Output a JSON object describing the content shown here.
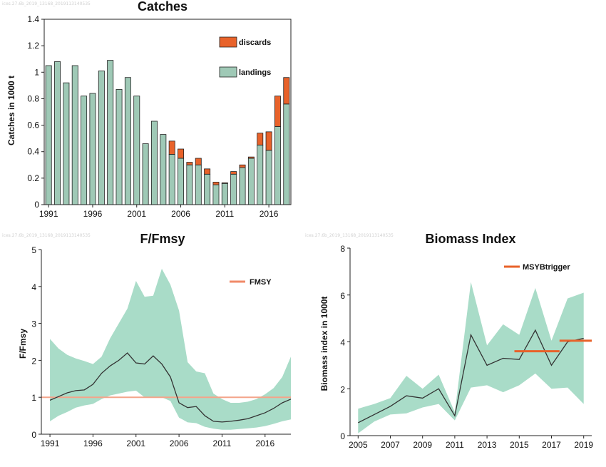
{
  "chart_data": [
    {
      "id": "catches",
      "type": "bar",
      "title": "Catches",
      "watermark": "ices.27.6b_2019_13168_2019113140535",
      "ylabel": "Catches in 1000 t",
      "xlabel": "",
      "ylim": [
        0,
        1.4
      ],
      "yticks": [
        "0",
        "0.2",
        "0.4",
        "0.6",
        "0.8",
        "1",
        "1.2",
        "1.4"
      ],
      "xtick_labels": [
        "1991",
        "1996",
        "2001",
        "2006",
        "2011",
        "2016"
      ],
      "categories": [
        1991,
        1992,
        1993,
        1994,
        1995,
        1996,
        1997,
        1998,
        1999,
        2000,
        2001,
        2002,
        2003,
        2004,
        2005,
        2006,
        2007,
        2008,
        2009,
        2010,
        2011,
        2012,
        2013,
        2014,
        2015,
        2016,
        2017,
        2018
      ],
      "series": [
        {
          "name": "landings",
          "color": "#9fc9b6",
          "values": [
            1.05,
            1.08,
            0.92,
            1.05,
            0.82,
            0.84,
            1.01,
            1.09,
            0.87,
            0.96,
            0.82,
            0.46,
            0.63,
            0.53,
            0.38,
            0.35,
            0.3,
            0.3,
            0.23,
            0.15,
            0.16,
            0.23,
            0.28,
            0.35,
            0.45,
            0.41,
            0.59,
            0.76
          ]
        },
        {
          "name": "discards",
          "color": "#e8622a",
          "values": [
            0,
            0,
            0,
            0,
            0,
            0,
            0,
            0,
            0,
            0,
            0,
            0,
            0,
            0,
            0.1,
            0.07,
            0.02,
            0.05,
            0.04,
            0.02,
            0.005,
            0.02,
            0.02,
            0.01,
            0.09,
            0.14,
            0.23,
            0.2
          ]
        }
      ],
      "legend": [
        "discards",
        "landings"
      ],
      "legend_position": "top-right"
    },
    {
      "id": "ffmsy",
      "type": "line",
      "title": "F/Fmsy",
      "watermark": "ices.27.6b_2019_13168_2019113140535",
      "ylabel": "F/Fmsy",
      "ylim": [
        0,
        5
      ],
      "yticks": [
        "0",
        "1",
        "2",
        "3",
        "4",
        "5"
      ],
      "xlim": [
        1990,
        2019
      ],
      "xtick_labels": [
        "1991",
        "1996",
        "2001",
        "2006",
        "2011",
        "2016"
      ],
      "x": [
        1991,
        1992,
        1993,
        1994,
        1995,
        1996,
        1997,
        1998,
        1999,
        2000,
        2001,
        2002,
        2003,
        2004,
        2005,
        2006,
        2007,
        2008,
        2009,
        2010,
        2011,
        2012,
        2013,
        2014,
        2015,
        2016,
        2017,
        2018,
        2019
      ],
      "series": [
        {
          "name": "F/Fmsy",
          "color": "#333333",
          "values": [
            0.92,
            1.02,
            1.12,
            1.18,
            1.2,
            1.35,
            1.65,
            1.85,
            2.0,
            2.2,
            1.93,
            1.9,
            2.12,
            1.9,
            1.55,
            0.85,
            0.72,
            0.75,
            0.5,
            0.35,
            0.33,
            0.35,
            0.38,
            0.42,
            0.5,
            0.58,
            0.7,
            0.85,
            0.95
          ]
        },
        {
          "name": "upper",
          "values": [
            2.58,
            2.32,
            2.15,
            2.05,
            1.98,
            1.9,
            2.1,
            2.6,
            3.0,
            3.4,
            4.15,
            3.72,
            3.75,
            4.48,
            4.05,
            3.35,
            1.95,
            1.7,
            1.65,
            1.1,
            0.95,
            0.85,
            0.85,
            0.88,
            0.95,
            1.08,
            1.25,
            1.55,
            2.1
          ]
        },
        {
          "name": "lower",
          "values": [
            0.35,
            0.5,
            0.6,
            0.72,
            0.78,
            0.82,
            0.95,
            1.05,
            1.1,
            1.15,
            1.18,
            1.0,
            1.0,
            1.0,
            0.9,
            0.45,
            0.32,
            0.3,
            0.2,
            0.15,
            0.12,
            0.12,
            0.14,
            0.16,
            0.18,
            0.22,
            0.28,
            0.35,
            0.4
          ]
        }
      ],
      "band_color": "#a9dcc8",
      "reference": {
        "name": "FMSY",
        "value": 1.0,
        "color": "#f4a48a"
      },
      "legend": [
        "FMSY"
      ],
      "legend_position": "top-right"
    },
    {
      "id": "biomass",
      "type": "line",
      "title": "Biomass Index",
      "watermark": "ices.27.6b_2019_13168_2019113140535",
      "ylabel": "Biomass index in 1000t",
      "ylim": [
        0,
        8
      ],
      "yticks": [
        "0",
        "2",
        "4",
        "6",
        "8"
      ],
      "xlim": [
        2004.5,
        2019.5
      ],
      "xtick_labels": [
        "2005",
        "2007",
        "2009",
        "2011",
        "2013",
        "2015",
        "2017",
        "2019"
      ],
      "x": [
        2005,
        2006,
        2007,
        2008,
        2009,
        2010,
        2011,
        2012,
        2013,
        2014,
        2015,
        2016,
        2017,
        2018,
        2019
      ],
      "series": [
        {
          "name": "Biomass index",
          "color": "#333333",
          "values": [
            0.55,
            0.9,
            1.25,
            1.7,
            1.6,
            2.0,
            0.85,
            4.3,
            3.0,
            3.3,
            3.25,
            4.5,
            3.0,
            4.0,
            4.15
          ]
        },
        {
          "name": "upper",
          "values": [
            1.15,
            1.35,
            1.6,
            2.55,
            2.0,
            2.6,
            1.0,
            6.55,
            3.85,
            4.75,
            4.3,
            6.3,
            4.05,
            5.85,
            6.1
          ]
        },
        {
          "name": "lower",
          "values": [
            0.1,
            0.6,
            0.9,
            0.95,
            1.2,
            1.35,
            0.65,
            2.05,
            2.15,
            1.85,
            2.15,
            2.65,
            2.0,
            2.05,
            1.35
          ]
        }
      ],
      "band_color": "#a9dcc8",
      "reference": {
        "name": "MSYBtrigger",
        "color": "#e8622a",
        "segments": [
          {
            "x0": 2014.7,
            "x1": 2017.5,
            "value": 3.6
          },
          {
            "x0": 2017.5,
            "x1": 2019.5,
            "value": 4.05
          }
        ]
      },
      "legend": [
        "MSYBtrigger"
      ],
      "legend_position": "top-right"
    }
  ]
}
